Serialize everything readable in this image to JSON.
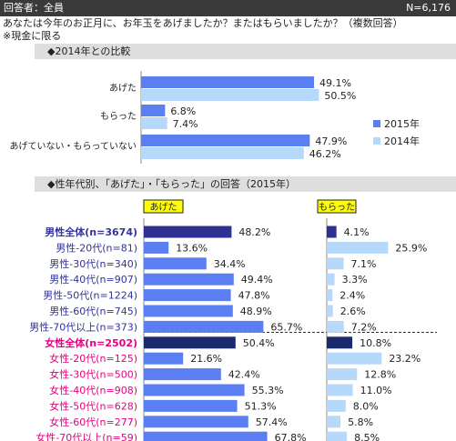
{
  "header": {
    "respondents": "回答者：全員",
    "n": "N=6,176"
  },
  "question": "あなたは今年のお正月に、お年玉をあげましたか？またはもらいましたか？（複数回答）",
  "note": "※現金に限る",
  "colors": {
    "y2015": "#5b7ff2",
    "y2014": "#b6d9fb",
    "male_total": "#2e3192",
    "female_total": "#1b2a6b",
    "male_label": "#333399",
    "female_label": "#e6007e",
    "tag_bg": "#ffff00"
  },
  "chart_data": [
    {
      "type": "bar",
      "orientation": "horizontal",
      "title": "◆2014年との比較",
      "categories": [
        "あげた",
        "もらった",
        "あげていない・もらっていない"
      ],
      "series": [
        {
          "name": "2015年",
          "values": [
            49.1,
            6.8,
            47.9
          ],
          "labels": [
            "49.1%",
            "6.8%",
            "47.9%"
          ]
        },
        {
          "name": "2014年",
          "values": [
            50.5,
            7.4,
            46.2
          ],
          "labels": [
            "50.5%",
            "7.4%",
            "46.2%"
          ]
        }
      ],
      "legend": "right"
    },
    {
      "type": "bar",
      "orientation": "horizontal",
      "title": "◆性年代別、「あげた」・「もらった」の回答（2015年）",
      "panels": [
        "あげた",
        "もらった"
      ],
      "categories": [
        "男性全体(n=3674)",
        "男性-20代(n=81)",
        "男性-30代(n=340)",
        "男性-40代(n=907)",
        "男性-50代(n=1224)",
        "男性-60代(n=745)",
        "男性-70代以上(n=373)",
        "女性全体(n=2502)",
        "女性-20代(n=125)",
        "女性-30代(n=500)",
        "女性-40代(n=908)",
        "女性-50代(n=628)",
        "女性-60代(n=277)",
        "女性-70代以上(n=59)"
      ],
      "series": [
        {
          "name": "あげた",
          "values": [
            48.2,
            13.6,
            34.4,
            49.4,
            47.8,
            48.9,
            65.7,
            50.4,
            21.6,
            42.4,
            55.3,
            51.3,
            57.4,
            67.8
          ],
          "labels": [
            "48.2%",
            "13.6%",
            "34.4%",
            "49.4%",
            "47.8%",
            "48.9%",
            "65.7%",
            "50.4%",
            "21.6%",
            "42.4%",
            "55.3%",
            "51.3%",
            "57.4%",
            "67.8%"
          ]
        },
        {
          "name": "もらった",
          "values": [
            4.1,
            25.9,
            7.1,
            3.3,
            2.4,
            2.6,
            7.2,
            10.8,
            23.2,
            12.8,
            11.0,
            8.0,
            5.8,
            8.5
          ],
          "labels": [
            "4.1%",
            "25.9%",
            "7.1%",
            "3.3%",
            "2.4%",
            "2.6%",
            "7.2%",
            "10.8%",
            "23.2%",
            "12.8%",
            "11.0%",
            "8.0%",
            "5.8%",
            "8.5%"
          ]
        }
      ]
    }
  ]
}
